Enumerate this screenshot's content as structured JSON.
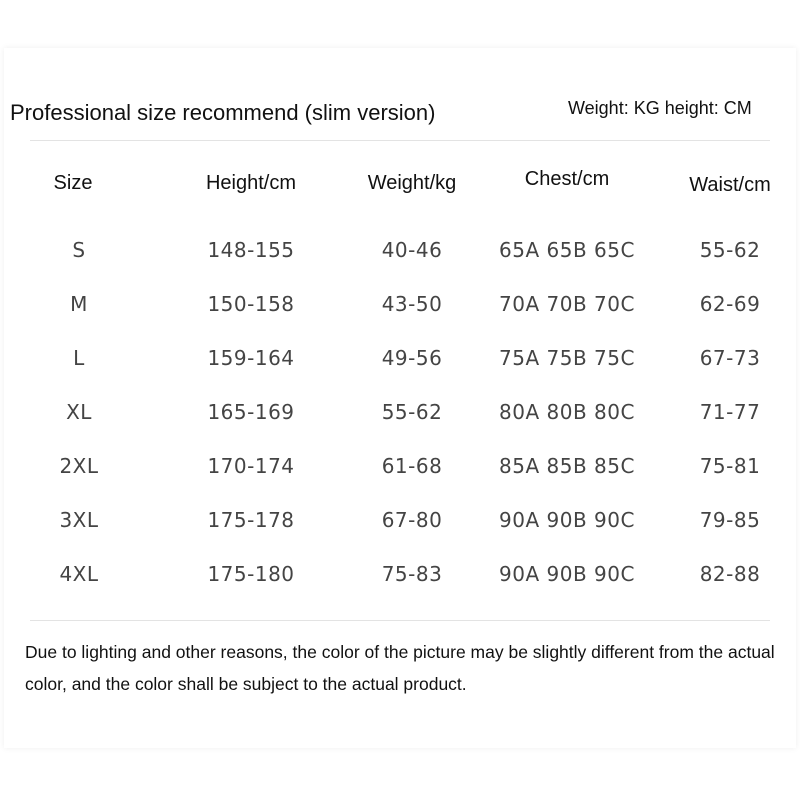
{
  "header": {
    "title": "Professional size recommend (slim version)",
    "units": "Weight: KG height: CM"
  },
  "table": {
    "columns": [
      "Size",
      "Height/cm",
      "Weight/kg",
      "Chest/cm",
      "Waist/cm"
    ],
    "rows": [
      [
        "S",
        "148-155",
        "40-46",
        "65A 65B 65C",
        "55-62"
      ],
      [
        "M",
        "150-158",
        "43-50",
        "70A 70B 70C",
        "62-69"
      ],
      [
        "L",
        "159-164",
        "49-56",
        "75A 75B 75C",
        "67-73"
      ],
      [
        "XL",
        "165-169",
        "55-62",
        "80A 80B 80C",
        "71-77"
      ],
      [
        "2XL",
        "170-174",
        "61-68",
        "85A 85B 85C",
        "75-81"
      ],
      [
        "3XL",
        "175-178",
        "67-80",
        "90A 90B 90C",
        "79-85"
      ],
      [
        "4XL",
        "175-180",
        "75-83",
        "90A 90B 90C",
        "82-88"
      ]
    ]
  },
  "note": "Due to lighting and other reasons, the color of the picture may be slightly different from the actual color, and the color shall be subject to the actual product."
}
